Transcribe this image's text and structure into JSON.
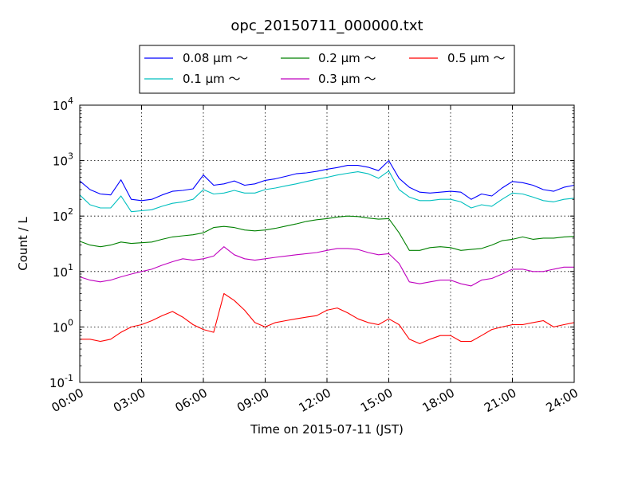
{
  "chart_data": {
    "type": "line",
    "title": "opc_20150711_000000.txt",
    "xlabel": "Time on 2015-07-11 (JST)",
    "ylabel": "Count / L",
    "yscale": "log",
    "ylim": [
      0.1,
      10000
    ],
    "xlim": [
      "2015-07-11 00:00",
      "2015-07-12 00:00"
    ],
    "x_ticks": [
      "00:00",
      "03:00",
      "06:00",
      "09:00",
      "12:00",
      "15:00",
      "18:00",
      "21:00",
      "24:00"
    ],
    "y_ticks": [
      {
        "base": "10",
        "exp": "-1",
        "value": 0.1
      },
      {
        "base": "10",
        "exp": "0",
        "value": 1
      },
      {
        "base": "10",
        "exp": "1",
        "value": 10
      },
      {
        "base": "10",
        "exp": "2",
        "value": 100
      },
      {
        "base": "10",
        "exp": "3",
        "value": 1000
      },
      {
        "base": "10",
        "exp": "4",
        "value": 10000
      }
    ],
    "grid": true,
    "legend_position": "top-center",
    "x": [
      "00:00",
      "00:30",
      "01:00",
      "01:30",
      "02:00",
      "02:30",
      "03:00",
      "03:30",
      "04:00",
      "04:30",
      "05:00",
      "05:30",
      "06:00",
      "06:30",
      "07:00",
      "07:30",
      "08:00",
      "08:30",
      "09:00",
      "09:30",
      "10:00",
      "10:30",
      "11:00",
      "11:30",
      "12:00",
      "12:30",
      "13:00",
      "13:30",
      "14:00",
      "14:30",
      "15:00",
      "15:30",
      "16:00",
      "16:30",
      "17:00",
      "17:30",
      "18:00",
      "18:30",
      "19:00",
      "19:30",
      "20:00",
      "20:30",
      "21:00",
      "21:30",
      "22:00",
      "22:30",
      "23:00",
      "23:30",
      "24:00"
    ],
    "series": [
      {
        "name": "0.08 μm ～",
        "color": "#0000ff",
        "values": [
          430,
          300,
          250,
          240,
          450,
          200,
          190,
          200,
          240,
          280,
          290,
          310,
          550,
          360,
          380,
          430,
          360,
          380,
          440,
          470,
          520,
          580,
          600,
          640,
          700,
          750,
          820,
          820,
          760,
          660,
          1000,
          480,
          330,
          270,
          260,
          270,
          280,
          270,
          200,
          250,
          230,
          320,
          420,
          400,
          360,
          300,
          280,
          330,
          360
        ]
      },
      {
        "name": "0.1 μm ～",
        "color": "#00bfbf",
        "values": [
          240,
          160,
          140,
          140,
          230,
          120,
          125,
          130,
          150,
          170,
          180,
          200,
          300,
          250,
          260,
          290,
          260,
          260,
          300,
          320,
          350,
          380,
          420,
          460,
          500,
          550,
          590,
          630,
          580,
          480,
          650,
          300,
          220,
          190,
          190,
          200,
          200,
          180,
          140,
          160,
          150,
          200,
          260,
          250,
          220,
          190,
          180,
          200,
          210
        ]
      },
      {
        "name": "0.2 μm ～",
        "color": "#008000",
        "values": [
          35,
          30,
          28,
          30,
          34,
          32,
          33,
          34,
          38,
          42,
          44,
          46,
          50,
          62,
          65,
          62,
          56,
          54,
          56,
          60,
          66,
          72,
          80,
          86,
          90,
          96,
          100,
          98,
          92,
          88,
          90,
          50,
          24,
          24,
          27,
          28,
          27,
          24,
          25,
          26,
          30,
          36,
          38,
          42,
          38,
          40,
          40,
          42,
          43
        ]
      },
      {
        "name": "0.3 μm ～",
        "color": "#bf00bf",
        "values": [
          8,
          7,
          6.5,
          7,
          8,
          9,
          10,
          11,
          13,
          15,
          17,
          16,
          17,
          19,
          28,
          20,
          17,
          16,
          17,
          18,
          19,
          20,
          21,
          22,
          24,
          26,
          26,
          25,
          22,
          20,
          21,
          14,
          6.5,
          6.0,
          6.5,
          7.0,
          7.0,
          6.0,
          5.5,
          7.0,
          7.5,
          9.0,
          11,
          11,
          10,
          10,
          11,
          12,
          12
        ]
      },
      {
        "name": "0.5 μm ～",
        "color": "#ff0000",
        "values": [
          0.6,
          0.6,
          0.55,
          0.6,
          0.8,
          1.0,
          1.1,
          1.3,
          1.6,
          1.9,
          1.5,
          1.1,
          0.9,
          0.8,
          4.0,
          3.0,
          2.0,
          1.2,
          1.0,
          1.2,
          1.3,
          1.4,
          1.5,
          1.6,
          2.0,
          2.2,
          1.8,
          1.4,
          1.2,
          1.1,
          1.4,
          1.1,
          0.6,
          0.5,
          0.6,
          0.7,
          0.7,
          0.55,
          0.55,
          0.7,
          0.9,
          1.0,
          1.1,
          1.1,
          1.2,
          1.3,
          1.0,
          1.1,
          1.2
        ]
      }
    ]
  }
}
